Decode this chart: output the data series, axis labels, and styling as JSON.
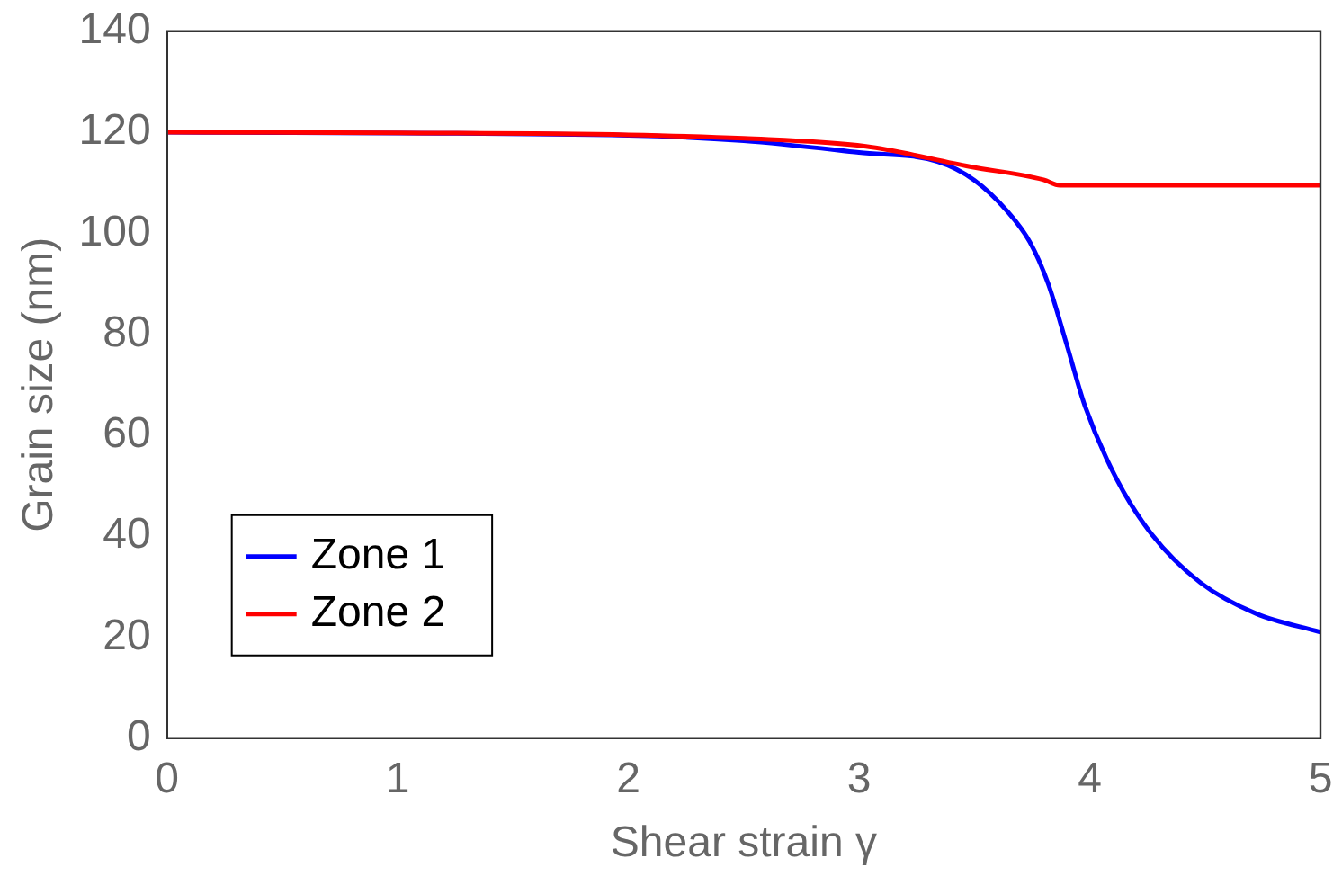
{
  "chart_data": {
    "type": "line",
    "xlabel": "Shear strain γ",
    "ylabel": "Grain size (nm)",
    "xlim": [
      0,
      5
    ],
    "xticks": [
      0,
      1,
      2,
      3,
      4,
      5
    ],
    "ylim": [
      0,
      140
    ],
    "yticks": [
      0,
      20,
      40,
      60,
      80,
      100,
      120,
      140
    ],
    "grid": false,
    "legend": "bottom left",
    "marker": "none",
    "line_style": "solid",
    "series": [
      {
        "name": "Zone 1",
        "color": "#0000ff",
        "x": [
          0,
          2,
          2.5,
          3,
          3.34,
          3.5,
          3.64,
          3.74,
          3.82,
          3.9,
          3.98,
          4.12,
          4.27,
          4.48,
          4.72,
          5
        ],
        "values": [
          120,
          119.4,
          118.3,
          116,
          114.2,
          110.5,
          104.5,
          98.3,
          90,
          78,
          65.7,
          51,
          40.3,
          30.8,
          24.7,
          21
        ]
      },
      {
        "name": "Zone 2",
        "color": "#ff0000",
        "x": [
          0,
          1,
          2,
          2.5,
          3.03,
          3.48,
          3.8,
          3.87,
          4.5,
          5
        ],
        "values": [
          120,
          119.9,
          119.5,
          118.8,
          117.2,
          113.2,
          110.6,
          109.5,
          109.5,
          109.5
        ]
      }
    ]
  }
}
